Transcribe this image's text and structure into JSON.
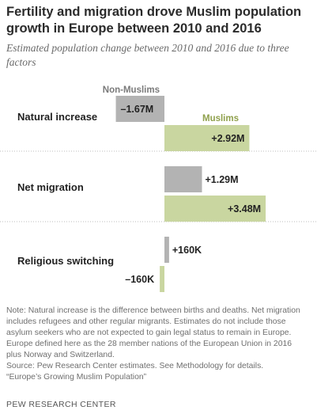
{
  "title": "Fertility and migration drove Muslim population growth in Europe between 2010 and 2016",
  "subtitle": "Estimated population change between 2010 and 2016 due to three factors",
  "chart_data": {
    "type": "bar",
    "orientation": "horizontal",
    "categories": [
      "Natural increase",
      "Net migration",
      "Religious switching"
    ],
    "series": [
      {
        "name": "Non-Muslims",
        "values": [
          -1.67,
          1.29,
          0.16
        ],
        "labels": [
          "–1.67M",
          "+1.29M",
          "+160K"
        ],
        "color": "#b3b3b3"
      },
      {
        "name": "Muslims",
        "values": [
          2.92,
          3.48,
          -0.16
        ],
        "labels": [
          "+2.92M",
          "+3.48M",
          "–160K"
        ],
        "color": "#c9d6a0"
      }
    ],
    "unit": "millions",
    "legend_color_nonmuslim": "#7a7a7a",
    "legend_color_muslim": "#8fa04c"
  },
  "notes": [
    "Note: Natural increase is the difference between births and deaths. Net migration",
    "includes refugees and other regular migrants. Estimates do not include those",
    "asylum seekers who are not expected to gain legal status to remain in Europe.",
    "Europe defined here as the 28 member nations of the European Union in 2016",
    "plus Norway and Switzerland.",
    "Source: Pew Research Center estimates. See Methodology for details.",
    "“Europe’s Growing Muslim Population”"
  ],
  "brand": "PEW RESEARCH CENTER"
}
